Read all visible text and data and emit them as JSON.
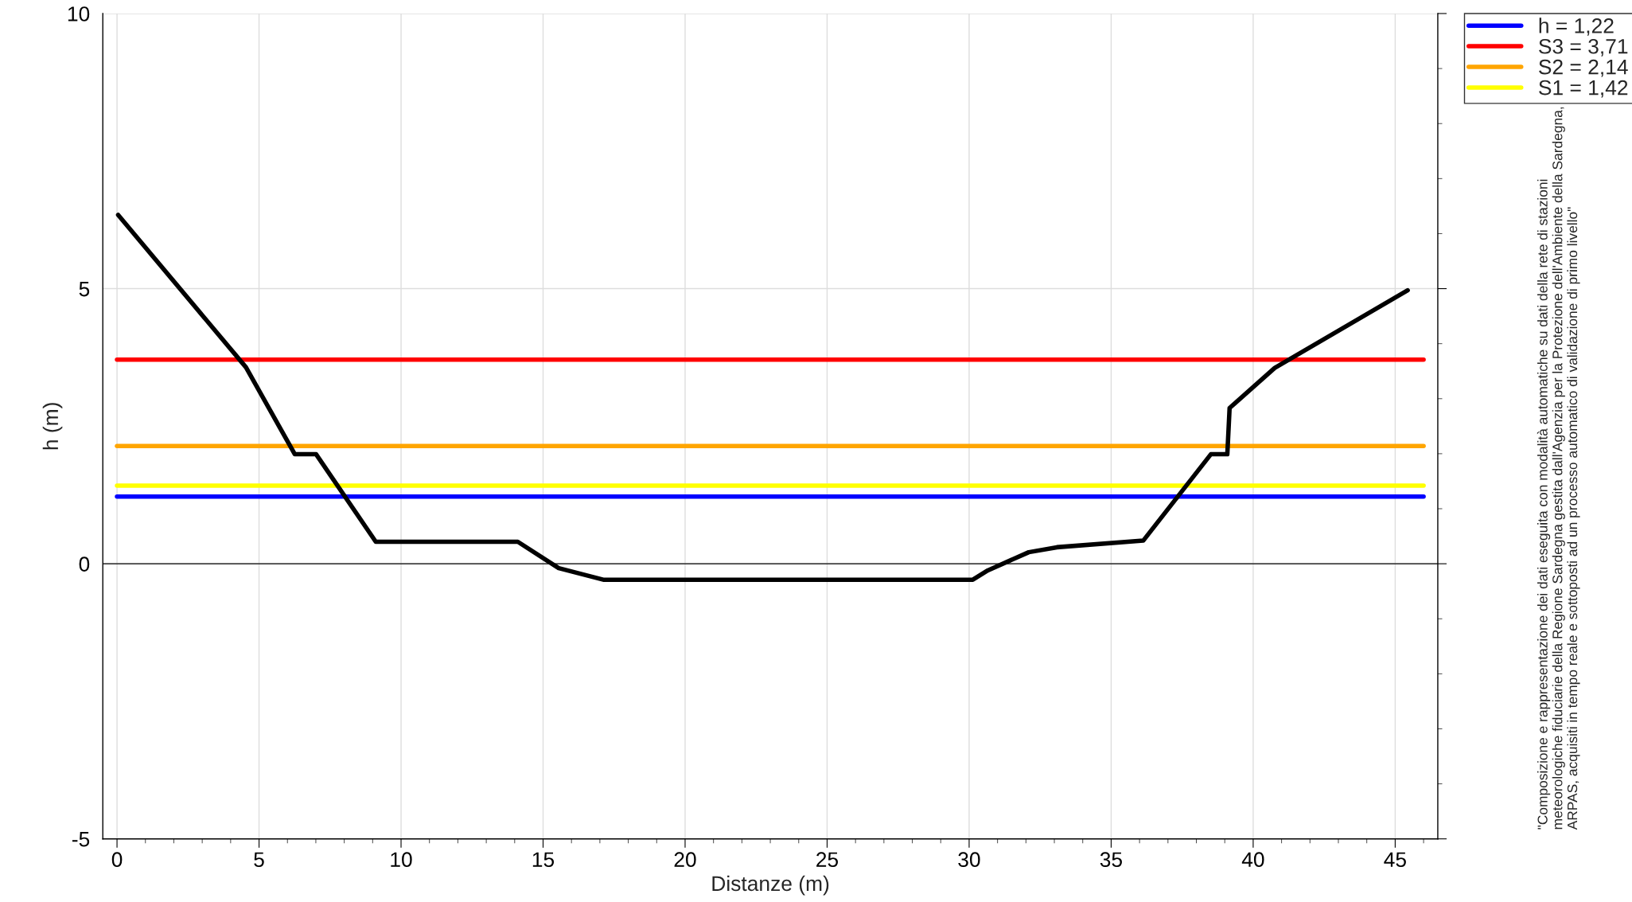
{
  "chart_data": {
    "type": "line",
    "xlabel": "Distanze (m)",
    "ylabel": "h (m)",
    "xlim": [
      -0.5,
      46.5
    ],
    "ylim": [
      -5,
      10
    ],
    "xticks": [
      0,
      5,
      10,
      15,
      20,
      25,
      30,
      35,
      40,
      45
    ],
    "yticks": [
      -5,
      0,
      5,
      10
    ],
    "grid": true,
    "legend": "top right",
    "marker": "none",
    "line_style": "solid",
    "series": [
      {
        "color": "#000000",
        "x": [
          0.04,
          4.54,
          6.26,
          7.01,
          9.11,
          14.11,
          15.55,
          17.12,
          30.13,
          30.66,
          32.1,
          33.09,
          36.13,
          38.51,
          39.09,
          39.17,
          40.76,
          45.44
        ],
        "values": [
          6.34,
          3.57,
          1.99,
          1.99,
          0.4,
          0.4,
          -0.08,
          -0.29,
          -0.29,
          -0.12,
          0.21,
          0.3,
          0.42,
          1.99,
          1.99,
          2.83,
          3.56,
          4.97
        ]
      },
      {
        "name": "h = 1,22",
        "color": "#0000ff",
        "x": [
          0,
          46
        ],
        "values": [
          1.22,
          1.22
        ]
      },
      {
        "name": "S3 = 3,71",
        "color": "#ff0000",
        "x": [
          0,
          46
        ],
        "values": [
          3.71,
          3.71
        ]
      },
      {
        "name": "S2 = 2,14",
        "color": "#ffa500",
        "x": [
          0,
          46
        ],
        "values": [
          2.14,
          2.14
        ]
      },
      {
        "name": "S1 = 1,42",
        "color": "#ffff00",
        "x": [
          0,
          46
        ],
        "values": [
          1.42,
          1.42
        ]
      }
    ],
    "ref_lines": [
      {
        "axis": "y",
        "value": 0,
        "color": "#000000"
      }
    ],
    "annotations": [
      "\"Composizione e rappresentazione dei dati eseguita con modalità automatiche su dati della rete di stazioni\nmeteorologiche fiduciarie della Regione Sardegna gestita dall'Agenzia per la Protezione dell'Ambiente della Sardegna,\nARPAS, acquisiti in tempo reale e sottoposti ad un processo automatico di validazione di primo livello\""
    ]
  }
}
